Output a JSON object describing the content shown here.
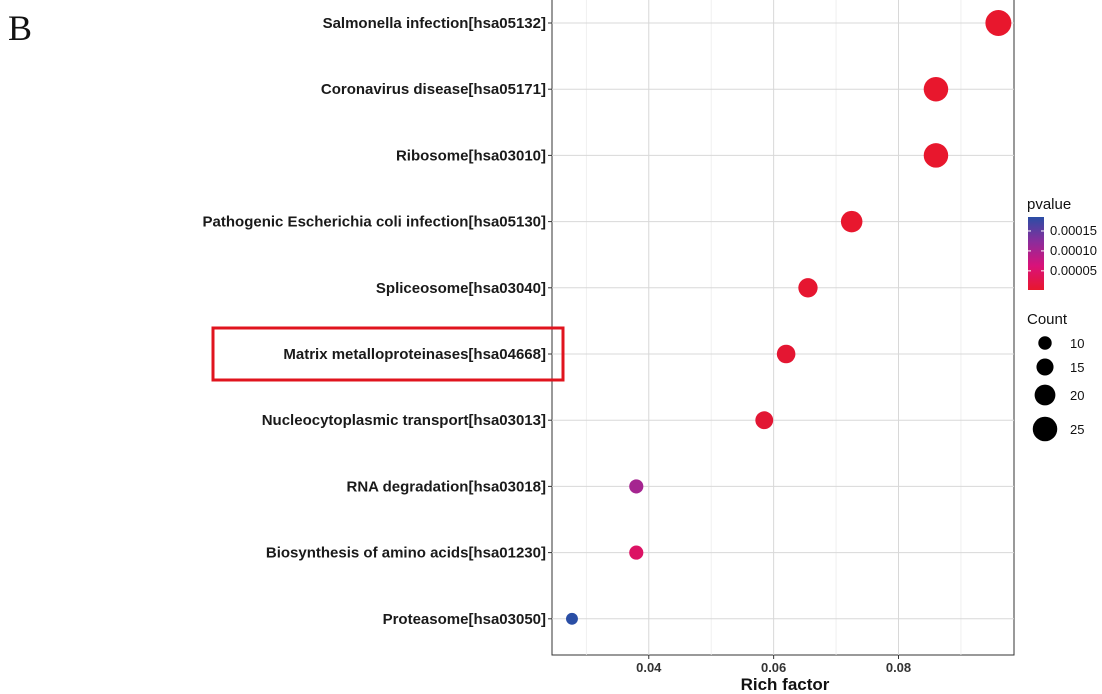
{
  "panel_label": "B",
  "chart_data": {
    "type": "scatter",
    "xlabel": "Rich factor",
    "ylabel": "",
    "xlim": [
      0.0245,
      0.0985
    ],
    "x_ticks": [
      0.04,
      0.06,
      0.08
    ],
    "x_tick_labels": [
      "0.04",
      "0.06",
      "0.08"
    ],
    "grid": true,
    "categories": [
      "Salmonella infection[hsa05132]",
      "Coronavirus disease[hsa05171]",
      "Ribosome[hsa03010]",
      "Pathogenic Escherichia coli infection[hsa05130]",
      "Spliceosome[hsa03040]",
      "Matrix metalloproteinases[hsa04668]",
      "Nucleocytoplasmic transport[hsa03013]",
      "RNA degradation[hsa03018]",
      "Biosynthesis of amino acids[hsa01230]",
      "Proteasome[hsa03050]"
    ],
    "points": [
      {
        "category": "Salmonella infection[hsa05132]",
        "x": 0.096,
        "count": 27,
        "pvalue": 2e-06,
        "color": "#e8172d"
      },
      {
        "category": "Coronavirus disease[hsa05171]",
        "x": 0.086,
        "count": 25,
        "pvalue": 2e-06,
        "color": "#e8172d"
      },
      {
        "category": "Ribosome[hsa03010]",
        "x": 0.086,
        "count": 25,
        "pvalue": 2e-06,
        "color": "#e8172d"
      },
      {
        "category": "Pathogenic Escherichia coli infection[hsa05130]",
        "x": 0.0725,
        "count": 21,
        "pvalue": 5e-06,
        "color": "#e8172e"
      },
      {
        "category": "Spliceosome[hsa03040]",
        "x": 0.0655,
        "count": 18,
        "pvalue": 8e-06,
        "color": "#e61630"
      },
      {
        "category": "Matrix metalloproteinases[hsa04668]",
        "x": 0.062,
        "count": 17,
        "pvalue": 1.2e-05,
        "color": "#e41632"
      },
      {
        "category": "Nucleocytoplasmic transport[hsa03013]",
        "x": 0.0585,
        "count": 16,
        "pvalue": 1.5e-05,
        "color": "#e21633"
      },
      {
        "category": "RNA degradation[hsa03018]",
        "x": 0.038,
        "count": 11,
        "pvalue": 0.000115,
        "color": "#a52590"
      },
      {
        "category": "Biosynthesis of amino acids[hsa01230]",
        "x": 0.038,
        "count": 11,
        "pvalue": 7.2e-05,
        "color": "#dc1264"
      },
      {
        "category": "Proteasome[hsa03050]",
        "x": 0.0277,
        "count": 8,
        "pvalue": 0.000185,
        "color": "#2a4ea5"
      }
    ],
    "highlighted_category": "Matrix metalloproteinases[hsa04668]",
    "highlight_color": "#e0141e",
    "legend_pvalue": {
      "title": "pvalue",
      "ticks": [
        0.00015,
        0.0001,
        5e-05
      ],
      "tick_labels": [
        "0.00015",
        "0.00010",
        "0.00005"
      ],
      "range": [
        2e-06,
        0.000185
      ],
      "colors_low_to_high": [
        "#e8172d",
        "#d9127a",
        "#8a2d9c",
        "#2a4ea5"
      ]
    },
    "legend_count": {
      "title": "Count",
      "values": [
        10,
        15,
        20,
        25
      ],
      "labels": [
        "10",
        "15",
        "20",
        "25"
      ],
      "fill": "#000000"
    },
    "legend_placement": "right"
  }
}
